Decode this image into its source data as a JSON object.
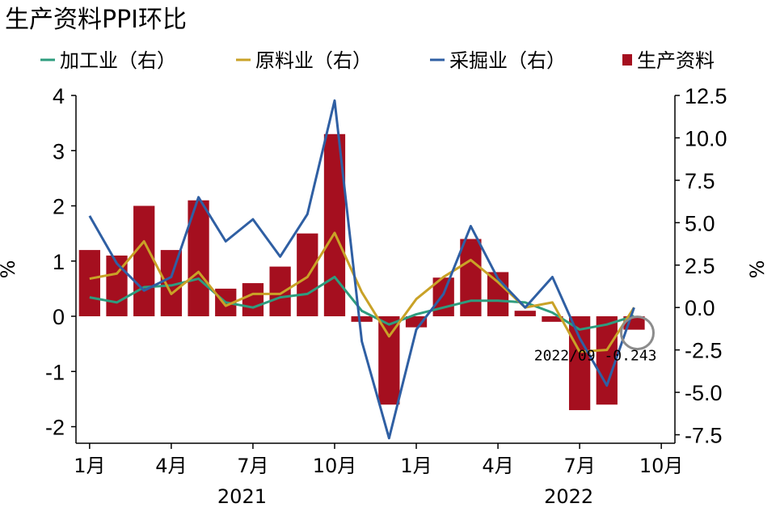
{
  "chart_data": {
    "type": "bar+line",
    "title": "生产资料PPI环比",
    "categories": [
      "2021-01",
      "2021-02",
      "2021-03",
      "2021-04",
      "2021-05",
      "2021-06",
      "2021-07",
      "2021-08",
      "2021-09",
      "2021-10",
      "2021-11",
      "2021-12",
      "2022-01",
      "2022-02",
      "2022-03",
      "2022-04",
      "2022-05",
      "2022-06",
      "2022-07",
      "2022-08",
      "2022-09"
    ],
    "x_tick_labels": [
      "1月",
      "4月",
      "7月",
      "10月",
      "1月",
      "4月",
      "7月",
      "10月"
    ],
    "x_tick_index": [
      0,
      3,
      6,
      9,
      12,
      15,
      18,
      21
    ],
    "year_labels": [
      "2021",
      "2022"
    ],
    "year_center_index": [
      6,
      18
    ],
    "bar_series": {
      "name": "生产资料",
      "axis": "left",
      "color": "#a50f1f",
      "values": [
        1.2,
        1.1,
        2.0,
        1.2,
        2.1,
        0.5,
        0.6,
        0.9,
        1.5,
        3.3,
        -0.1,
        -1.6,
        -0.2,
        0.7,
        1.4,
        0.8,
        0.1,
        -0.1,
        -1.7,
        -1.6,
        -0.243
      ]
    },
    "line_series": [
      {
        "name": "加工业（右）",
        "axis": "right",
        "color": "#2e9c7e",
        "values": [
          0.6,
          0.3,
          1.2,
          1.3,
          1.7,
          0.3,
          0.0,
          0.6,
          0.8,
          1.8,
          -0.2,
          -1.0,
          -0.4,
          0.0,
          0.4,
          0.4,
          0.3,
          -0.3,
          -1.3,
          -1.0,
          -0.5
        ]
      },
      {
        "name": "原料业（右）",
        "axis": "right",
        "color": "#c9a227",
        "values": [
          1.7,
          2.0,
          3.9,
          0.8,
          2.1,
          0.1,
          0.8,
          0.8,
          1.8,
          4.4,
          0.9,
          -1.7,
          0.5,
          1.8,
          2.8,
          1.5,
          0.0,
          0.3,
          -2.6,
          -2.5,
          0.0
        ]
      },
      {
        "name": "采掘业（右）",
        "axis": "right",
        "color": "#2f5fa3",
        "values": [
          5.4,
          2.6,
          1.0,
          1.8,
          6.5,
          3.9,
          5.2,
          3.0,
          5.5,
          12.2,
          -2.0,
          -7.7,
          -1.3,
          0.8,
          4.8,
          1.7,
          0.0,
          1.8,
          -1.8,
          -4.6,
          0.0
        ]
      }
    ],
    "legend": [
      "加工业（右）",
      "原料业（右）",
      "采掘业（右）",
      "生产资料"
    ],
    "legend_position": "top",
    "left_axis": {
      "label": "%",
      "ylim": [
        -2.3,
        4.0
      ],
      "ticks": [
        -2,
        -1,
        0,
        1,
        2,
        3,
        4
      ],
      "tick_labels": [
        "-2",
        "-1",
        "0",
        "1",
        "2",
        "3",
        "4"
      ]
    },
    "right_axis": {
      "label": "%",
      "ylim": [
        -8.0,
        12.5
      ],
      "ticks": [
        -7.5,
        -5.0,
        -2.5,
        0.0,
        2.5,
        5.0,
        7.5,
        10.0,
        12.5
      ],
      "tick_labels": [
        "-7.5",
        "-5.0",
        "-2.5",
        "0.0",
        "2.5",
        "5.0",
        "7.5",
        "10.0",
        "12.5"
      ]
    },
    "annotation": {
      "text": "2022/09 -0.243",
      "target_index": 20,
      "target_value": -0.243
    }
  }
}
